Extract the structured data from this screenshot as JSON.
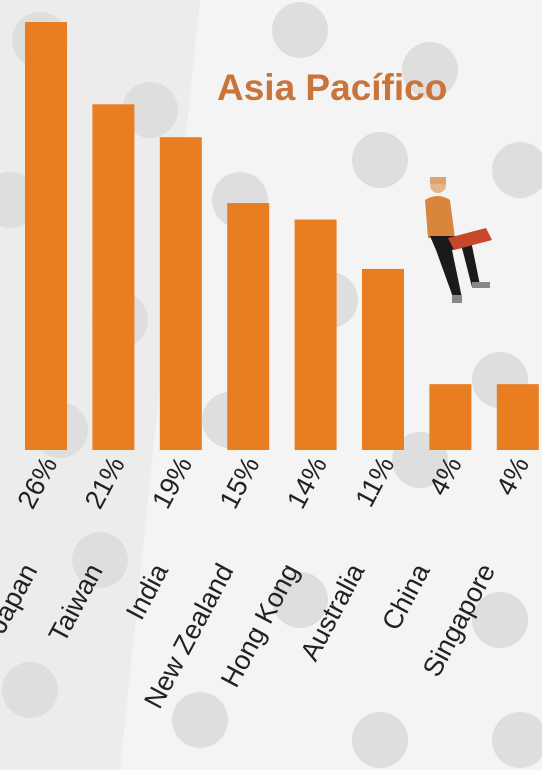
{
  "chart_data": {
    "type": "bar",
    "title": "Asia Pacífico",
    "categories": [
      "Japan",
      "Taiwan",
      "India",
      "New Zealand",
      "Hong Kong",
      "Australia",
      "China",
      "Singapore"
    ],
    "values": [
      26,
      21,
      19,
      15,
      14,
      11,
      4,
      4
    ],
    "value_labels": [
      "26%",
      "21%",
      "19%",
      "15%",
      "14%",
      "11%",
      "4%",
      "4%"
    ],
    "color": "#e87d22"
  }
}
